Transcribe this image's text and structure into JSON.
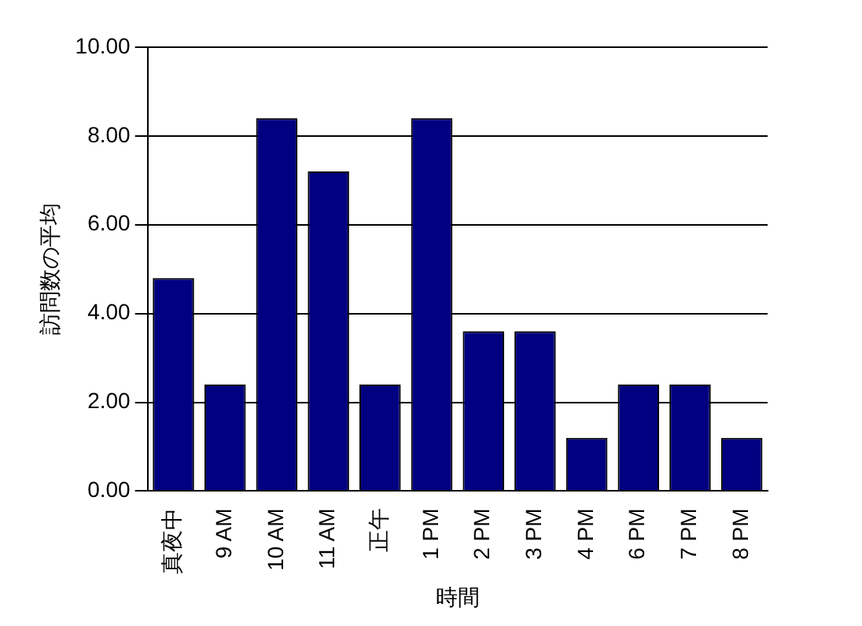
{
  "chart_data": {
    "type": "bar",
    "xlabel": "時間",
    "ylabel": "訪問数の平均",
    "categories": [
      "真夜中",
      "9 AM",
      "10 AM",
      "11 AM",
      "正午",
      "1 PM",
      "2 PM",
      "3 PM",
      "4 PM",
      "6 PM",
      "7 PM",
      "8 PM"
    ],
    "values": [
      4.8,
      2.4,
      8.4,
      7.2,
      2.4,
      8.4,
      3.6,
      3.6,
      1.2,
      2.4,
      2.4,
      1.2
    ],
    "color": "#000080",
    "ylim": [
      0,
      10
    ],
    "yticks": [
      {
        "value": 0,
        "label": "0.00"
      },
      {
        "value": 2,
        "label": "2.00"
      },
      {
        "value": 4,
        "label": "4.00"
      },
      {
        "value": 6,
        "label": "6.00"
      },
      {
        "value": 8,
        "label": "8.00"
      },
      {
        "value": 10,
        "label": "10.00"
      }
    ],
    "grid": "y",
    "legend": false
  }
}
